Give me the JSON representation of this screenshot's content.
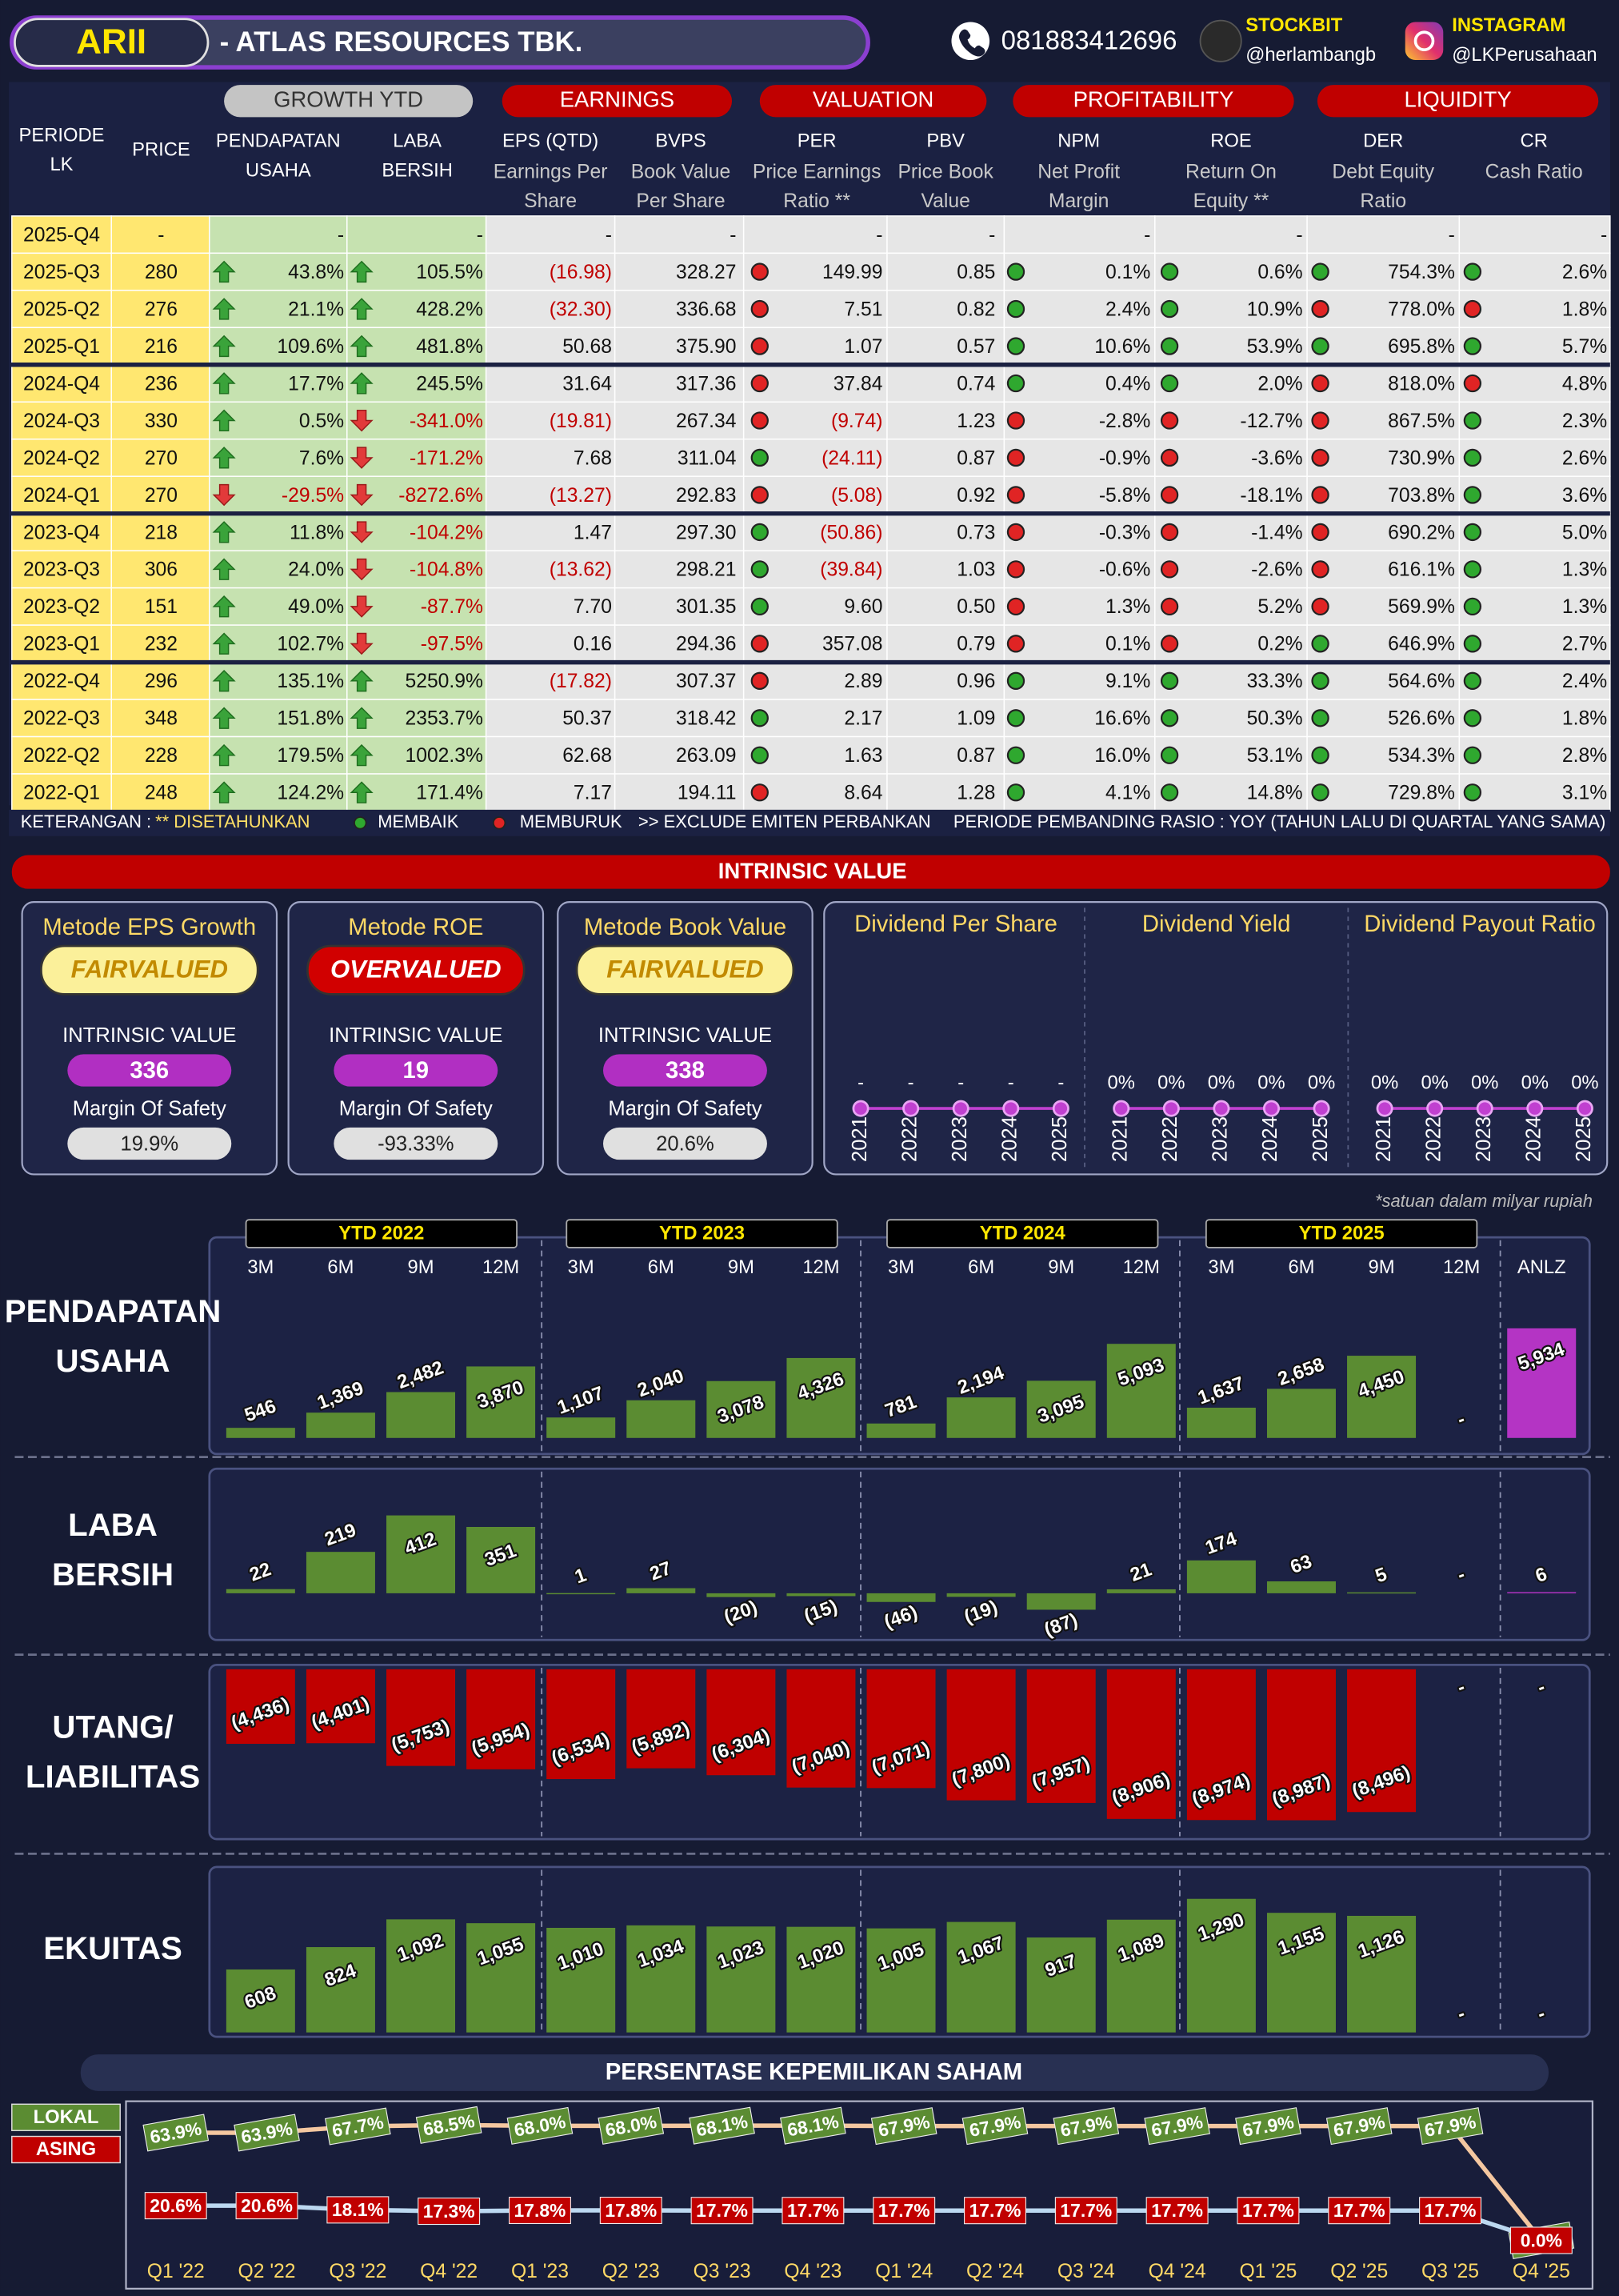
{
  "header": {
    "ticker": "ARII",
    "company": "-  ATLAS RESOURCES TBK.",
    "phone": "081883412696",
    "stockbit_label": "STOCKBIT",
    "stockbit_handle": "@herlambangb",
    "instagram_label": "INSTAGRAM",
    "instagram_handle": "@LKPerusahaan"
  },
  "table": {
    "groups": [
      "GROWTH YTD",
      "EARNINGS",
      "VALUATION",
      "PROFITABILITY",
      "LIQUIDITY"
    ],
    "columns": [
      [
        "PERIODE",
        "LK"
      ],
      [
        "PRICE"
      ],
      [
        "PENDAPATAN",
        "USAHA"
      ],
      [
        "LABA",
        "BERSIH"
      ],
      [
        "EPS (QTD)"
      ],
      [
        "BVPS"
      ],
      [
        "PER"
      ],
      [
        "PBV"
      ],
      [
        "NPM"
      ],
      [
        "ROE"
      ],
      [
        "DER"
      ],
      [
        "CR"
      ]
    ],
    "subheaders": [
      [
        "Earnings Per",
        "Share"
      ],
      [
        "Book Value",
        "Per Share"
      ],
      [
        "Price Earnings",
        "Ratio **"
      ],
      [
        "Price Book",
        "Value"
      ],
      [
        "Net Profit",
        "Margin"
      ],
      [
        "Return On",
        "Equity **"
      ],
      [
        "Debt Equity",
        "Ratio"
      ],
      [
        "Cash Ratio"
      ]
    ],
    "rows": [
      [
        "2025-Q4",
        "-",
        "-",
        "-",
        "-",
        "-",
        "-",
        "-",
        "-",
        "-",
        "-",
        "-"
      ],
      [
        "2025-Q3",
        "280",
        "43.8%",
        "105.5%",
        "(16.98)",
        "328.27",
        "149.99",
        "0.85",
        "0.1%",
        "0.6%",
        "754.3%",
        "2.6%"
      ],
      [
        "2025-Q2",
        "276",
        "21.1%",
        "428.2%",
        "(32.30)",
        "336.68",
        "7.51",
        "0.82",
        "2.4%",
        "10.9%",
        "778.0%",
        "1.8%"
      ],
      [
        "2025-Q1",
        "216",
        "109.6%",
        "481.8%",
        "50.68",
        "375.90",
        "1.07",
        "0.57",
        "10.6%",
        "53.9%",
        "695.8%",
        "5.7%"
      ],
      [
        "2024-Q4",
        "236",
        "17.7%",
        "245.5%",
        "31.64",
        "317.36",
        "37.84",
        "0.74",
        "0.4%",
        "2.0%",
        "818.0%",
        "4.8%"
      ],
      [
        "2024-Q3",
        "330",
        "0.5%",
        "-341.0%",
        "(19.81)",
        "267.34",
        "(9.74)",
        "1.23",
        "-2.8%",
        "-12.7%",
        "867.5%",
        "2.3%"
      ],
      [
        "2024-Q2",
        "270",
        "7.6%",
        "-171.2%",
        "7.68",
        "311.04",
        "(24.11)",
        "0.87",
        "-0.9%",
        "-3.6%",
        "730.9%",
        "2.6%"
      ],
      [
        "2024-Q1",
        "270",
        "-29.5%",
        "-8272.6%",
        "(13.27)",
        "292.83",
        "(5.08)",
        "0.92",
        "-5.8%",
        "-18.1%",
        "703.8%",
        "3.6%"
      ],
      [
        "2023-Q4",
        "218",
        "11.8%",
        "-104.2%",
        "1.47",
        "297.30",
        "(50.86)",
        "0.73",
        "-0.3%",
        "-1.4%",
        "690.2%",
        "5.0%"
      ],
      [
        "2023-Q3",
        "306",
        "24.0%",
        "-104.8%",
        "(13.62)",
        "298.21",
        "(39.84)",
        "1.03",
        "-0.6%",
        "-2.6%",
        "616.1%",
        "1.3%"
      ],
      [
        "2023-Q2",
        "151",
        "49.0%",
        "-87.7%",
        "7.70",
        "301.35",
        "9.60",
        "0.50",
        "1.3%",
        "5.2%",
        "569.9%",
        "1.3%"
      ],
      [
        "2023-Q1",
        "232",
        "102.7%",
        "-97.5%",
        "0.16",
        "294.36",
        "357.08",
        "0.79",
        "0.1%",
        "0.2%",
        "646.9%",
        "2.7%"
      ],
      [
        "2022-Q4",
        "296",
        "135.1%",
        "5250.9%",
        "(17.82)",
        "307.37",
        "2.89",
        "0.96",
        "9.1%",
        "33.3%",
        "564.6%",
        "2.4%"
      ],
      [
        "2022-Q3",
        "348",
        "151.8%",
        "2353.7%",
        "50.37",
        "318.42",
        "2.17",
        "1.09",
        "16.6%",
        "50.3%",
        "526.6%",
        "1.8%"
      ],
      [
        "2022-Q2",
        "228",
        "179.5%",
        "1002.3%",
        "62.68",
        "263.09",
        "1.63",
        "0.87",
        "16.0%",
        "53.1%",
        "534.3%",
        "2.8%"
      ],
      [
        "2022-Q1",
        "248",
        "124.2%",
        "171.4%",
        "7.17",
        "194.11",
        "8.64",
        "1.28",
        "4.1%",
        "14.8%",
        "729.8%",
        "3.1%"
      ]
    ],
    "dots": [
      [],
      [
        "worse",
        "better",
        "better",
        "better",
        "better"
      ],
      [
        "worse",
        "better",
        "better",
        "worse",
        "worse"
      ],
      [
        "worse",
        "better",
        "better",
        "better",
        "better"
      ],
      [
        "worse",
        "better",
        "better",
        "worse",
        "worse"
      ],
      [
        "worse",
        "worse",
        "worse",
        "worse",
        "better"
      ],
      [
        "better",
        "worse",
        "worse",
        "worse",
        "better"
      ],
      [
        "worse",
        "worse",
        "worse",
        "worse",
        "better"
      ],
      [
        "better",
        "worse",
        "worse",
        "worse",
        "better"
      ],
      [
        "better",
        "worse",
        "worse",
        "worse",
        "better"
      ],
      [
        "better",
        "worse",
        "worse",
        "worse",
        "better"
      ],
      [
        "worse",
        "worse",
        "worse",
        "better",
        "better"
      ],
      [
        "worse",
        "better",
        "better",
        "better",
        "better"
      ],
      [
        "better",
        "better",
        "better",
        "better",
        "better"
      ],
      [
        "better",
        "better",
        "better",
        "better",
        "better"
      ],
      [
        "worse",
        "better",
        "better",
        "better",
        "better"
      ]
    ]
  },
  "legend": {
    "keterangan": "KETERANGAN :",
    "annualized": "** DISETAHUNKAN",
    "better": "MEMBAIK",
    "worse": "MEMBURUK",
    "exclude": ">> EXCLUDE EMITEN PERBANKAN",
    "comparison": "PERIODE PEMBANDING RASIO : YOY (TAHUN LALU DI QUARTAL YANG SAMA)",
    "better_color": "#2fa82f",
    "worse_color": "#e02424"
  },
  "intrinsic": {
    "title": "INTRINSIC VALUE",
    "methods": [
      {
        "name": "Metode EPS Growth",
        "status": "FAIRVALUED",
        "status_color": "#fbf09a",
        "status_text_color": "#c28a00",
        "value_label": "INTRINSIC VALUE",
        "value": 336,
        "mos_label": "Margin Of Safety",
        "mos": "19.9%"
      },
      {
        "name": "Metode ROE",
        "status": "OVERVALUED",
        "status_color": "#d10000",
        "status_text_color": "#ffffff",
        "value_label": "INTRINSIC VALUE",
        "value": 19,
        "mos_label": "Margin Of Safety",
        "mos": "-93.33%"
      },
      {
        "name": "Metode Book Value",
        "status": "FAIRVALUED",
        "status_color": "#fbf09a",
        "status_text_color": "#c28a00",
        "value_label": "INTRINSIC VALUE",
        "value": 338,
        "mos_label": "Margin Of Safety",
        "mos": "20.6%"
      }
    ],
    "dividends": [
      {
        "title": "Dividend Per Share",
        "years": [
          "2021",
          "2022",
          "2023",
          "2024",
          "2025"
        ],
        "values": [
          "-",
          "-",
          "-",
          "-",
          "-"
        ]
      },
      {
        "title": "Dividend Yield",
        "years": [
          "2021",
          "2022",
          "2023",
          "2024",
          "2025"
        ],
        "values": [
          "0%",
          "0%",
          "0%",
          "0%",
          "0%"
        ]
      },
      {
        "title": "Dividend Payout Ratio",
        "years": [
          "2021",
          "2022",
          "2023",
          "2024",
          "2025"
        ],
        "values": [
          "0%",
          "0%",
          "0%",
          "0%",
          "0%"
        ]
      }
    ]
  },
  "chart_data": [
    {
      "type": "bar",
      "label": [
        "PENDAPATAN",
        "USAHA"
      ],
      "note": "*satuan dalam milyar rupiah",
      "groups": [
        "YTD 2022",
        "YTD 2023",
        "YTD 2024",
        "YTD 2025"
      ],
      "categories": [
        "3M",
        "6M",
        "9M",
        "12M",
        "3M",
        "6M",
        "9M",
        "12M",
        "3M",
        "6M",
        "9M",
        "12M",
        "3M",
        "6M",
        "9M",
        "12M",
        "ANLZ"
      ],
      "values": [
        546,
        1369,
        2482,
        3870,
        1107,
        2040,
        3078,
        4326,
        781,
        2194,
        3095,
        5093,
        1637,
        2658,
        4450,
        null,
        5934
      ],
      "value_labels": [
        "546",
        "1,369",
        "2,482",
        "3,870",
        "1,107",
        "2,040",
        "3,078",
        "4,326",
        "781",
        "2,194",
        "3,095",
        "5,093",
        "1,637",
        "2,658",
        "4,450",
        "-",
        "5,934"
      ],
      "color": "#5b8c32",
      "highlight_color": "#b434c4",
      "ylim": [
        0,
        6500
      ]
    },
    {
      "type": "bar",
      "label": [
        "LABA",
        "BERSIH"
      ],
      "values": [
        22,
        219,
        412,
        351,
        1,
        27,
        -20,
        -15,
        -46,
        -19,
        -87,
        21,
        174,
        63,
        5,
        null,
        6
      ],
      "value_labels": [
        "22",
        "219",
        "412",
        "351",
        "1",
        "27",
        "(20)",
        "(15)",
        "(46)",
        "(19)",
        "(87)",
        "21",
        "174",
        "63",
        "5",
        "-",
        "6"
      ],
      "color": "#5b8c32",
      "highlight_color": "#b434c4",
      "ylim": [
        -100,
        450
      ]
    },
    {
      "type": "bar",
      "label": [
        "UTANG/",
        "LIABILITAS"
      ],
      "values": [
        -4436,
        -4401,
        -5753,
        -5954,
        -6534,
        -5892,
        -6304,
        -7040,
        -7071,
        -7800,
        -7957,
        -8906,
        -8974,
        -8987,
        -8496,
        null,
        null
      ],
      "value_labels": [
        "(4,436)",
        "(4,401)",
        "(5,753)",
        "(5,954)",
        "(6,534)",
        "(5,892)",
        "(6,304)",
        "(7,040)",
        "(7,071)",
        "(7,800)",
        "(7,957)",
        "(8,906)",
        "(8,974)",
        "(8,987)",
        "(8,496)",
        "-",
        "-"
      ],
      "color": "#c00000",
      "highlight_color": "#b434c4",
      "ylim": [
        -9500,
        0
      ]
    },
    {
      "type": "bar",
      "label": [
        "EKUITAS"
      ],
      "values": [
        608,
        824,
        1092,
        1055,
        1010,
        1034,
        1023,
        1020,
        1005,
        1067,
        917,
        1089,
        1290,
        1155,
        1126,
        null,
        null
      ],
      "value_labels": [
        "608",
        "824",
        "1,092",
        "1,055",
        "1,010",
        "1,034",
        "1,023",
        "1,020",
        "1,005",
        "1,067",
        "917",
        "1,089",
        "1,290",
        "1,155",
        "1,126",
        "-",
        "-"
      ],
      "color": "#5b8c32",
      "highlight_color": "#b434c4",
      "ylim": [
        0,
        1400
      ]
    },
    {
      "type": "line",
      "title": "PERSENTASE KEPEMILIKAN SAHAM",
      "categories": [
        "Q1 '22",
        "Q2 '22",
        "Q3 '22",
        "Q4 '22",
        "Q1 '23",
        "Q2 '23",
        "Q3 '23",
        "Q4 '23",
        "Q1 '24",
        "Q2 '24",
        "Q3 '24",
        "Q4 '24",
        "Q1 '25",
        "Q2 '25",
        "Q3 '25",
        "Q4 '25"
      ],
      "series": [
        {
          "name": "LOKAL",
          "color": "#5b8c32",
          "line_color": "#f4c7a0",
          "values": [
            63.9,
            63.9,
            67.7,
            68.5,
            68.0,
            68.0,
            68.1,
            68.1,
            67.9,
            67.9,
            67.9,
            67.9,
            67.9,
            67.9,
            67.9,
            0.0
          ],
          "value_labels": [
            "63.9%",
            "63.9%",
            "67.7%",
            "68.5%",
            "68.0%",
            "68.0%",
            "68.1%",
            "68.1%",
            "67.9%",
            "67.9%",
            "67.9%",
            "67.9%",
            "67.9%",
            "67.9%",
            "67.9%",
            "0.0%"
          ]
        },
        {
          "name": "ASING",
          "color": "#c00000",
          "line_color": "#bcd8f0",
          "values": [
            20.6,
            20.6,
            18.1,
            17.3,
            17.8,
            17.8,
            17.7,
            17.7,
            17.7,
            17.7,
            17.7,
            17.7,
            17.7,
            17.7,
            17.7,
            0.0
          ],
          "value_labels": [
            "20.6%",
            "20.6%",
            "18.1%",
            "17.3%",
            "17.8%",
            "17.8%",
            "17.7%",
            "17.7%",
            "17.7%",
            "17.7%",
            "17.7%",
            "17.7%",
            "17.7%",
            "17.7%",
            "17.7%",
            "0.0%"
          ]
        }
      ],
      "ylim": [
        0,
        80
      ]
    }
  ]
}
